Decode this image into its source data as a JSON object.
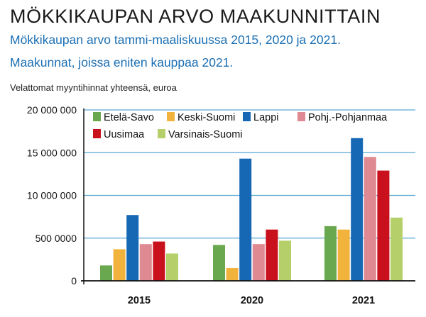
{
  "header": {
    "title": "MÖKKIKAUPAN ARVO MAAKUNNITTAIN",
    "subtitle_line1": "Mökkikaupan arvo tammi-maaliskuussa 2015, 2020 ja 2021.",
    "subtitle_line2": "Maakunnat, joissa eniten kauppaa 2021.",
    "unit_label": "Velattomat myyntihinnat yhteensä, euroa"
  },
  "chart_data": {
    "type": "bar",
    "categories": [
      "2015",
      "2020",
      "2021"
    ],
    "ylim": [
      0,
      20000000
    ],
    "yticks": [
      0,
      5000000,
      10000000,
      15000000,
      20000000
    ],
    "ytick_labels": [
      "0",
      "500 0000",
      "10 000 000",
      "15 000 000",
      "20 000 000"
    ],
    "grid": true,
    "legend_position": "top",
    "series": [
      {
        "name": "Etelä-Savo",
        "color": "#6aa84f",
        "values": [
          1800000,
          4200000,
          6400000
        ]
      },
      {
        "name": "Keski-Suomi",
        "color": "#f1b33c",
        "values": [
          3700000,
          1500000,
          6000000
        ]
      },
      {
        "name": "Lappi",
        "color": "#1668b5",
        "values": [
          7700000,
          14300000,
          16700000
        ]
      },
      {
        "name": "Pohj.-Pohjanmaa",
        "color": "#df8a92",
        "values": [
          4300000,
          4300000,
          14500000
        ]
      },
      {
        "name": "Uusimaa",
        "color": "#c9111e",
        "values": [
          4600000,
          6000000,
          12900000
        ]
      },
      {
        "name": "Varsinais-Suomi",
        "color": "#b5d06a",
        "values": [
          3200000,
          4700000,
          7400000
        ]
      }
    ]
  }
}
